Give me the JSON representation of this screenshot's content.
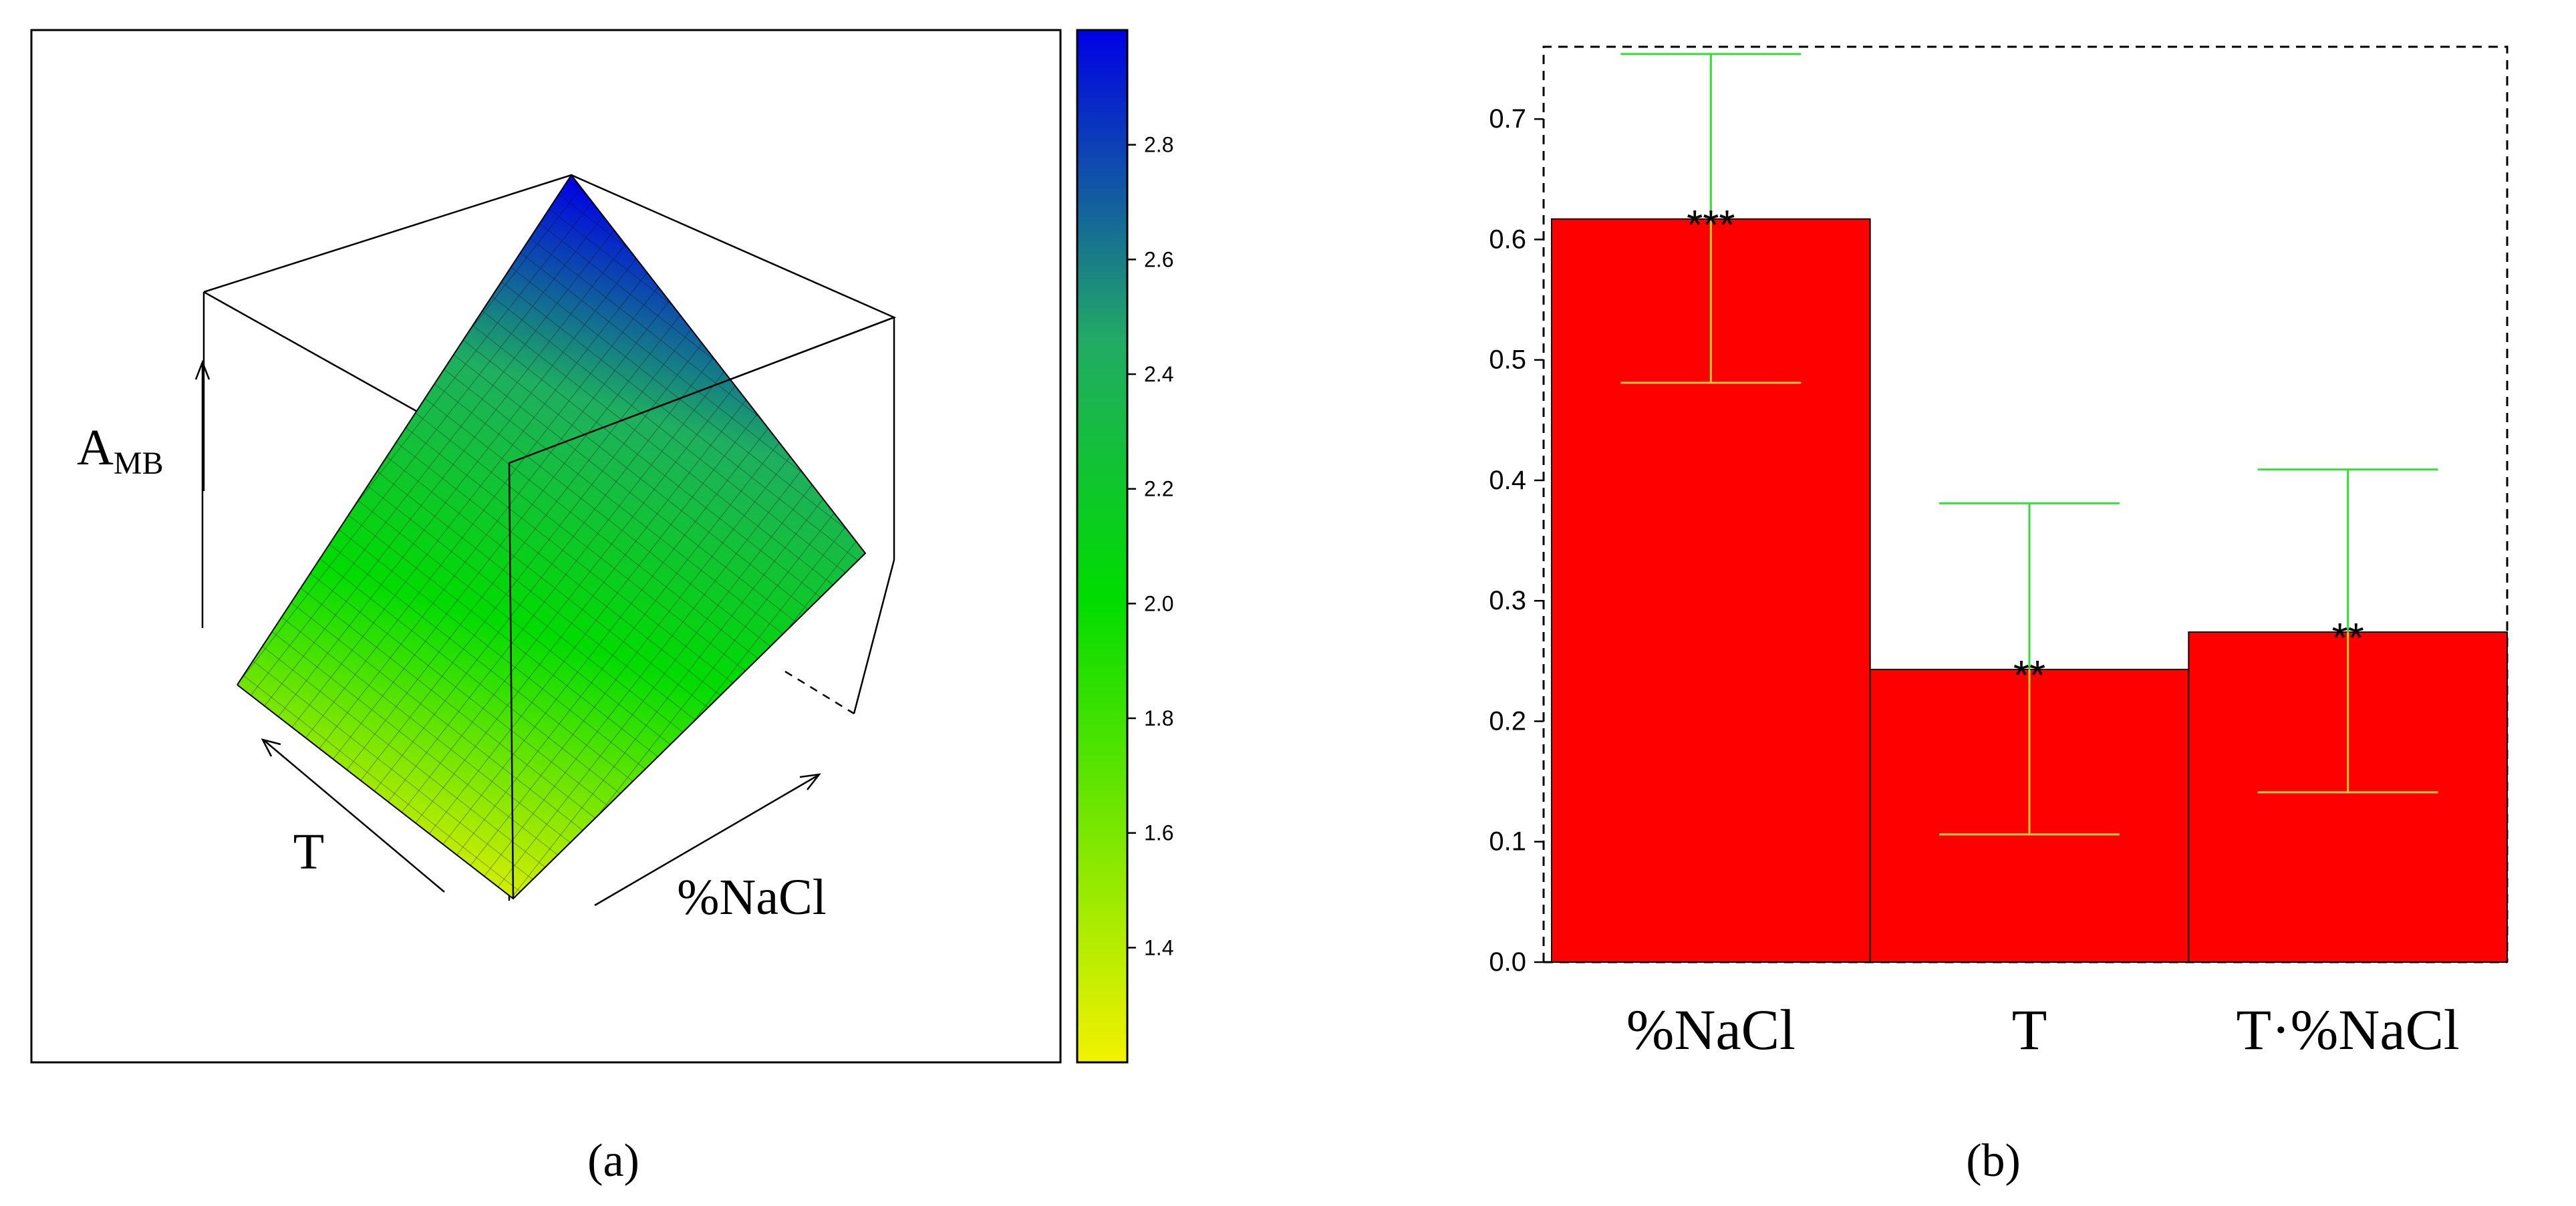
{
  "panels": {
    "a_label": "(a)",
    "b_label": "(b)"
  },
  "chart_data": [
    {
      "type": "surface",
      "axis_labels": {
        "z_main": "A",
        "z_sub": "MB",
        "x": "T",
        "y": "%NaCl"
      },
      "colorbar": {
        "ticks": [
          1.4,
          1.6,
          1.8,
          2.0,
          2.2,
          2.4,
          2.6,
          2.8
        ],
        "range": [
          1.2,
          3.0
        ],
        "colors": [
          "#f2f200",
          "#00dc00",
          "#0000e6"
        ]
      },
      "corner_values": {
        "low": 1.22,
        "right": 2.1,
        "peak": 2.98
      }
    },
    {
      "type": "bar",
      "categories": [
        "%NaCl",
        "T",
        "T·%NaCl"
      ],
      "values": [
        0.617,
        0.243,
        0.274
      ],
      "error_low": [
        0.481,
        0.106,
        0.141
      ],
      "error_high": [
        0.754,
        0.381,
        0.409
      ],
      "significance": [
        "***",
        "**",
        "**"
      ],
      "ylim": [
        0,
        0.76
      ],
      "yticks": [
        "0.0",
        "0.1",
        "0.2",
        "0.3",
        "0.4",
        "0.5",
        "0.6",
        "0.7"
      ],
      "colors": {
        "bar": "#ff0000",
        "err_upper": "#33dd33",
        "err_lower": "#cccc33"
      }
    }
  ]
}
